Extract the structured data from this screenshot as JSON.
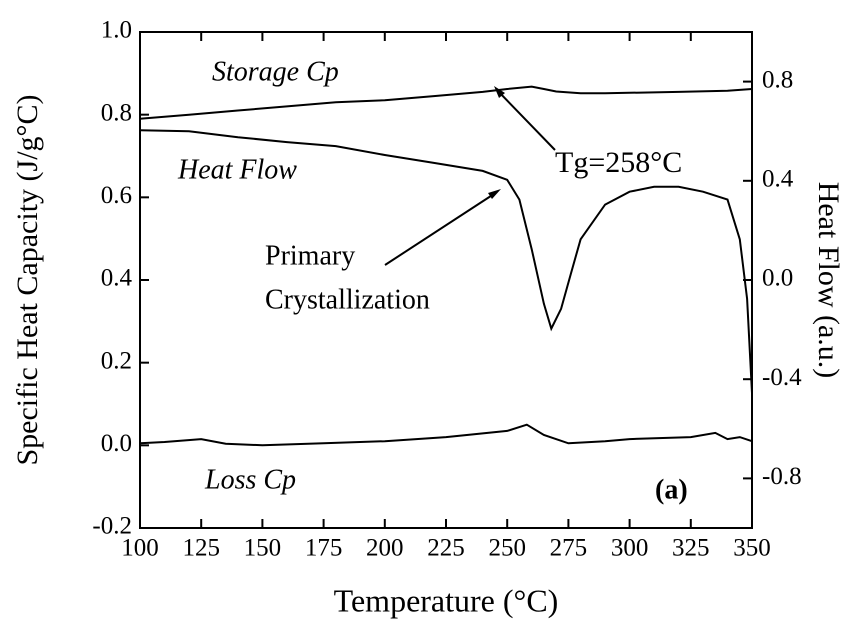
{
  "chart_data": {
    "type": "line",
    "xlabel": "Temperature (°C)",
    "ylabel": "Specific Heat Capacity (J/g°C)",
    "y2label": "Heat Flow (a.u.)",
    "xlim": [
      100,
      350
    ],
    "xticks": [
      100,
      125,
      150,
      175,
      200,
      225,
      250,
      275,
      300,
      325,
      350
    ],
    "ylim": [
      -0.2,
      1.0
    ],
    "yticks": [
      {
        "value": -0.2,
        "label": "-0.2"
      },
      {
        "value": 0,
        "label": "0.0"
      },
      {
        "value": 0.2,
        "label": "0.2"
      },
      {
        "value": 0.4,
        "label": "0.4"
      },
      {
        "value": 0.6,
        "label": "0.6"
      },
      {
        "value": 0.8,
        "label": "0.8"
      },
      {
        "value": 1.0,
        "label": "1.0"
      }
    ],
    "y2lim": [
      -1.0,
      1.0
    ],
    "y2ticks": [
      {
        "value": -0.8,
        "label": "-0.8"
      },
      {
        "value": -0.4,
        "label": "-0.4"
      },
      {
        "value": 0,
        "label": "0.0"
      },
      {
        "value": 0.4,
        "label": "0.4"
      },
      {
        "value": 0.8,
        "label": "0.8"
      }
    ],
    "series": [
      {
        "name": "Storage Cp",
        "color": "#000000",
        "x": [
          100,
          120,
          140,
          160,
          180,
          200,
          220,
          240,
          250,
          260,
          265,
          270,
          280,
          290,
          300,
          320,
          340,
          350
        ],
        "values": [
          0.79,
          0.8,
          0.81,
          0.82,
          0.83,
          0.835,
          0.845,
          0.855,
          0.862,
          0.868,
          0.862,
          0.856,
          0.852,
          0.852,
          0.853,
          0.855,
          0.858,
          0.862
        ]
      },
      {
        "name": "Heat Flow",
        "color": "#000000",
        "axis": "y2",
        "x": [
          100,
          120,
          140,
          160,
          180,
          200,
          220,
          240,
          250,
          255,
          260,
          265,
          268,
          272,
          276,
          280,
          290,
          300,
          310,
          320,
          330,
          340,
          345,
          348,
          350
        ],
        "values": [
          0.604,
          0.6,
          0.576,
          0.556,
          0.54,
          0.504,
          0.472,
          0.44,
          0.404,
          0.324,
          0.124,
          -0.096,
          -0.196,
          -0.116,
          0.024,
          0.164,
          0.304,
          0.356,
          0.376,
          0.376,
          0.356,
          0.324,
          0.164,
          -0.076,
          -0.456
        ]
      },
      {
        "name": "Loss Cp",
        "color": "#000000",
        "x": [
          100,
          110,
          125,
          135,
          150,
          175,
          200,
          225,
          250,
          258,
          265,
          275,
          290,
          300,
          325,
          335,
          340,
          345,
          350
        ],
        "values": [
          0.005,
          0.008,
          0.015,
          0.004,
          0.0,
          0.005,
          0.01,
          0.02,
          0.035,
          0.05,
          0.025,
          0.005,
          0.01,
          0.015,
          0.02,
          0.03,
          0.015,
          0.02,
          0.01
        ]
      }
    ],
    "annotations": [
      "Tg=258°C",
      "Primary",
      "Crystallization",
      "(a)"
    ]
  }
}
